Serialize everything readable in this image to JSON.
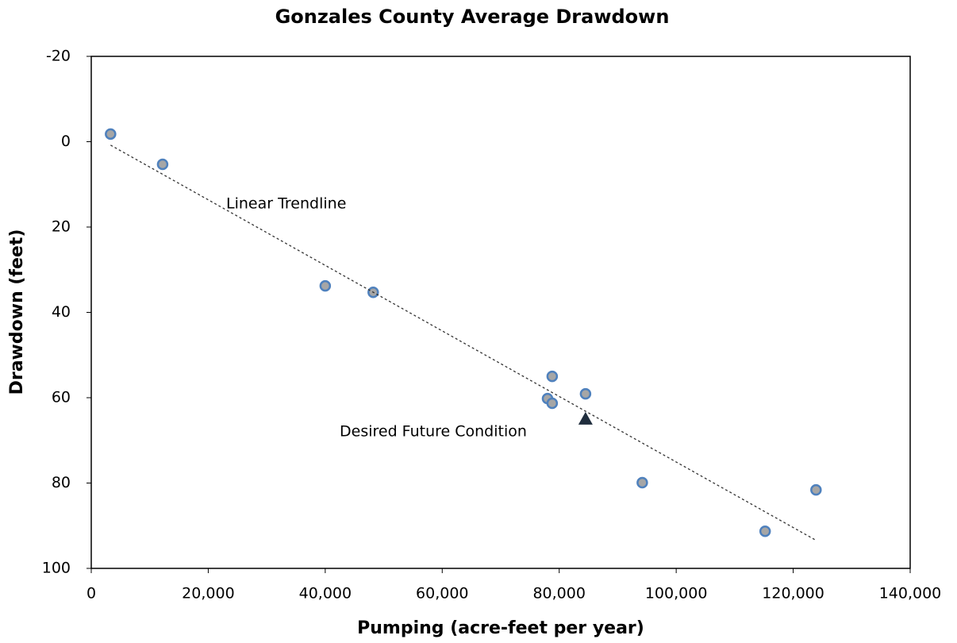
{
  "chart_data": {
    "type": "scatter",
    "title": "Gonzales County Average Drawdown",
    "x_label": "Pumping (acre-feet per year)",
    "y_label": "Drawdown (feet)",
    "annotations": [
      "Linear Trendline",
      "Desired Future Condition"
    ],
    "xlim": [
      0,
      140000
    ],
    "xticks": [
      0,
      {
        "value": 20000,
        "label": "20,000"
      },
      {
        "value": 40000,
        "label": "40,000"
      },
      {
        "value": 60000,
        "label": "60,000"
      },
      {
        "value": 80000,
        "label": "80,000"
      },
      {
        "value": 100000,
        "label": "100,000"
      },
      {
        "value": 120000,
        "label": "120,000"
      },
      {
        "value": 140000,
        "label": "140,000"
      }
    ],
    "ylim": [
      -20,
      100
    ],
    "yticks": [
      -20,
      0,
      20,
      40,
      60,
      80,
      100
    ],
    "y_inverted": true,
    "series": [
      {
        "color": "#a6a6a6",
        "marker": "circle",
        "x": [
          3300,
          12200,
          40000,
          48200,
          78800,
          78000,
          78800,
          84500,
          94200,
          115200,
          123900
        ],
        "values": [
          -1.8,
          5.3,
          33.8,
          35.3,
          55.0,
          60.2,
          61.3,
          59.1,
          79.9,
          91.3,
          81.6
        ]
      },
      {
        "color": "#1f2d3d",
        "marker": "triangle",
        "x": [
          84500
        ],
        "values": [
          65.0
        ]
      },
      {
        "color": "#333333",
        "marker": "line",
        "x": [
          3300,
          124000
        ],
        "values": [
          0.8,
          93.5
        ]
      }
    ]
  }
}
